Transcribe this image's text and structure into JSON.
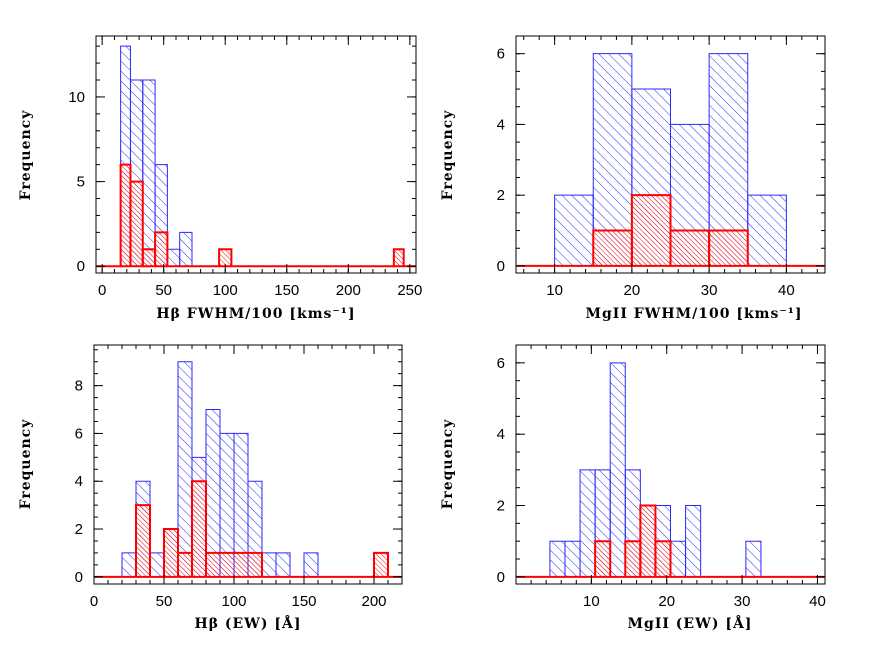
{
  "chart_data": [
    {
      "type": "histogram",
      "xlabel": "Hβ FWHM/100 [kms⁻¹]",
      "ylabel": "Frequency",
      "xlim": [
        -5,
        255
      ],
      "ylim": [
        -0.4,
        13.6
      ],
      "xticks": [
        0,
        50,
        100,
        150,
        200,
        250
      ],
      "yticks": [
        0,
        5,
        10
      ],
      "x_minor_step": 10,
      "y_minor_step": 1,
      "baseline_span": [
        -5,
        255
      ],
      "series": [
        {
          "style": "blue-hatch",
          "color": "#2a2aff",
          "fill": "hatch",
          "bins": [
            [
              15,
              23,
              13
            ],
            [
              23,
              33,
              11
            ],
            [
              33,
              43,
              11
            ],
            [
              43,
              53,
              6
            ],
            [
              53,
              63,
              1
            ],
            [
              63,
              73,
              2
            ]
          ]
        },
        {
          "style": "red-hatch",
          "color": "#ff0000",
          "fill": "hatch",
          "bins": [
            [
              15,
              23,
              6
            ],
            [
              23,
              33,
              5
            ],
            [
              33,
              43,
              1
            ],
            [
              43,
              53,
              2
            ],
            [
              95,
              105,
              1
            ],
            [
              237,
              245,
              1
            ]
          ]
        }
      ]
    },
    {
      "type": "histogram",
      "xlabel": "MgII FWHM/100 [kms⁻¹]",
      "ylabel": "Frequency",
      "xlim": [
        5,
        45
      ],
      "ylim": [
        -0.2,
        6.5
      ],
      "xticks": [
        10,
        20,
        30,
        40
      ],
      "yticks": [
        0,
        2,
        4,
        6
      ],
      "x_minor_step": 2,
      "y_minor_step": 0.5,
      "baseline_span": [
        5,
        45
      ],
      "series": [
        {
          "style": "blue-hatch",
          "color": "#2a2aff",
          "fill": "hatch",
          "bins": [
            [
              10,
              15,
              2
            ],
            [
              15,
              20,
              6
            ],
            [
              20,
              25,
              5
            ],
            [
              25,
              30,
              4
            ],
            [
              30,
              35,
              6
            ],
            [
              35,
              40,
              2
            ]
          ]
        },
        {
          "style": "red-hatch",
          "color": "#ff0000",
          "fill": "hatch",
          "bins": [
            [
              15,
              20,
              1
            ],
            [
              20,
              25,
              2
            ],
            [
              25,
              30,
              1
            ],
            [
              30,
              35,
              1
            ]
          ]
        }
      ]
    },
    {
      "type": "histogram",
      "xlabel": "Hβ (EW) [Å]",
      "ylabel": "Frequency",
      "xlim": [
        0,
        220
      ],
      "ylim": [
        -0.3,
        9.7
      ],
      "xticks": [
        0,
        50,
        100,
        150,
        200
      ],
      "yticks": [
        0,
        2,
        4,
        6,
        8
      ],
      "x_minor_step": 10,
      "y_minor_step": 0.5,
      "baseline_span": [
        0,
        220
      ],
      "series": [
        {
          "style": "blue-hatch",
          "color": "#2a2aff",
          "fill": "hatch",
          "bins": [
            [
              20,
              30,
              1
            ],
            [
              30,
              40,
              4
            ],
            [
              40,
              50,
              1
            ],
            [
              50,
              60,
              2
            ],
            [
              60,
              70,
              9
            ],
            [
              70,
              80,
              5
            ],
            [
              80,
              90,
              7
            ],
            [
              90,
              100,
              6
            ],
            [
              100,
              110,
              6
            ],
            [
              110,
              120,
              4
            ],
            [
              120,
              130,
              1
            ],
            [
              130,
              140,
              1
            ],
            [
              150,
              160,
              1
            ]
          ]
        },
        {
          "style": "red-hatch",
          "color": "#ff0000",
          "fill": "hatch",
          "bins": [
            [
              30,
              40,
              3
            ],
            [
              50,
              60,
              2
            ],
            [
              60,
              70,
              1
            ],
            [
              70,
              80,
              4
            ],
            [
              80,
              120,
              1
            ],
            [
              200,
              210,
              1
            ]
          ]
        }
      ]
    },
    {
      "type": "histogram",
      "xlabel": "MgII (EW) [Å]",
      "ylabel": "Frequency",
      "xlim": [
        0,
        41
      ],
      "ylim": [
        -0.2,
        6.5
      ],
      "xticks": [
        10,
        20,
        30,
        40
      ],
      "yticks": [
        0,
        2,
        4,
        6
      ],
      "x_minor_step": 2,
      "y_minor_step": 0.5,
      "baseline_span": [
        0,
        41
      ],
      "series": [
        {
          "style": "blue-hatch",
          "color": "#2a2aff",
          "fill": "hatch",
          "bins": [
            [
              4.5,
              6.5,
              1
            ],
            [
              6.5,
              8.5,
              1
            ],
            [
              8.5,
              10.5,
              3
            ],
            [
              10.5,
              12.5,
              3
            ],
            [
              12.5,
              14.5,
              6
            ],
            [
              14.5,
              16.5,
              3
            ],
            [
              16.5,
              18.5,
              2
            ],
            [
              18.5,
              20.5,
              2
            ],
            [
              20.5,
              22.5,
              1
            ],
            [
              22.5,
              24.5,
              2
            ],
            [
              30.5,
              32.5,
              1
            ]
          ]
        },
        {
          "style": "red-hatch",
          "color": "#ff0000",
          "fill": "hatch",
          "bins": [
            [
              10.5,
              12.5,
              1
            ],
            [
              14.5,
              16.5,
              1
            ],
            [
              16.5,
              18.5,
              2
            ],
            [
              18.5,
              20.5,
              1
            ]
          ]
        }
      ]
    }
  ]
}
